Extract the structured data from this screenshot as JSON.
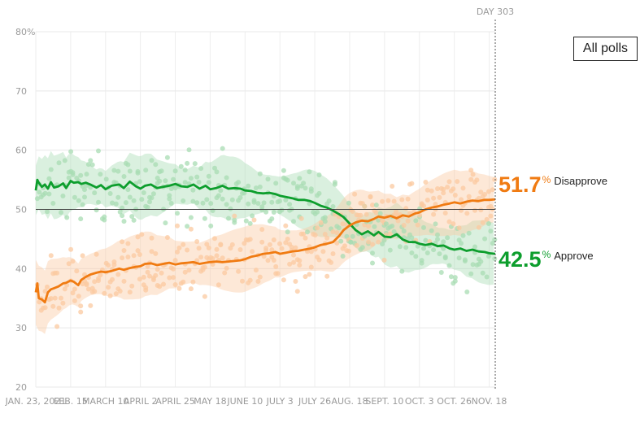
{
  "filter_button": {
    "label": "All polls"
  },
  "day_marker": {
    "label": "DAY 303"
  },
  "end_labels": {
    "disapprove": {
      "value": "51.7",
      "unit": "%",
      "name": "Disapprove"
    },
    "approve": {
      "value": "42.5",
      "unit": "%",
      "name": "Approve"
    }
  },
  "colors": {
    "approve": "#0d9e2d",
    "disapprove": "#f07b12",
    "approve_light": "#a8dcb3",
    "disapprove_light": "#fbc9a0"
  },
  "chart_data": {
    "type": "line",
    "title": "",
    "xlabel": "",
    "ylabel": "",
    "ylim": [
      20,
      80
    ],
    "xlim_days": [
      0,
      303
    ],
    "y_tick_labels": [
      "20",
      "30",
      "40",
      "50",
      "60",
      "70",
      "80%"
    ],
    "y_ticks": [
      20,
      30,
      40,
      50,
      60,
      70,
      80
    ],
    "x_tick_labels": [
      "JAN. 23, 2021",
      "FEB. 15",
      "MARCH 10",
      "APRIL 2",
      "APRIL 25",
      "MAY 18",
      "JUNE 10",
      "JULY 3",
      "JULY 26",
      "AUG. 18",
      "SEPT. 10",
      "OCT. 3",
      "OCT. 26",
      "NOV. 18"
    ],
    "x_tick_days": [
      0,
      23,
      46,
      69,
      92,
      115,
      138,
      161,
      184,
      207,
      230,
      253,
      276,
      299
    ],
    "reference_line": 50,
    "grid": true,
    "series": [
      {
        "name": "Approve",
        "color": "#0d9e2d",
        "x": [
          0,
          1,
          2,
          4,
          6,
          8,
          10,
          12,
          15,
          18,
          20,
          23,
          25,
          28,
          30,
          33,
          36,
          40,
          43,
          46,
          50,
          55,
          58,
          62,
          66,
          69,
          72,
          76,
          80,
          84,
          88,
          92,
          96,
          100,
          104,
          108,
          112,
          115,
          119,
          123,
          127,
          131,
          135,
          138,
          142,
          146,
          150,
          154,
          158,
          161,
          165,
          169,
          173,
          177,
          181,
          184,
          188,
          192,
          196,
          200,
          203,
          207,
          211,
          215,
          219,
          223,
          226,
          230,
          234,
          238,
          242,
          246,
          250,
          253,
          257,
          261,
          265,
          269,
          273,
          276,
          280,
          284,
          288,
          292,
          296,
          299,
          303
        ],
        "y": [
          53.2,
          55.0,
          54.5,
          53.8,
          54.2,
          53.5,
          54.6,
          53.7,
          53.9,
          54.4,
          53.6,
          54.8,
          54.5,
          54.6,
          54.3,
          54.5,
          54.2,
          53.7,
          54.1,
          53.4,
          54.0,
          54.2,
          53.6,
          54.7,
          53.9,
          53.5,
          54.0,
          54.2,
          53.6,
          53.8,
          54.0,
          54.3,
          53.9,
          53.8,
          54.2,
          53.5,
          54.0,
          53.4,
          53.6,
          54.0,
          53.5,
          53.6,
          53.5,
          53.2,
          53.1,
          52.8,
          52.7,
          52.8,
          52.6,
          52.3,
          52.1,
          51.9,
          51.6,
          51.6,
          51.4,
          51.1,
          50.6,
          50.3,
          49.8,
          49.2,
          48.7,
          47.6,
          46.5,
          45.8,
          46.3,
          45.6,
          46.2,
          45.4,
          45.3,
          45.8,
          44.9,
          44.5,
          44.5,
          44.2,
          44.0,
          44.2,
          43.8,
          43.9,
          43.4,
          43.2,
          43.4,
          43.0,
          43.2,
          42.9,
          42.8,
          42.6,
          42.5
        ]
      },
      {
        "name": "Disapprove",
        "color": "#f07b12",
        "x": [
          0,
          1,
          2,
          4,
          6,
          8,
          10,
          12,
          15,
          18,
          20,
          23,
          25,
          28,
          30,
          33,
          36,
          40,
          43,
          46,
          50,
          55,
          58,
          62,
          66,
          69,
          72,
          76,
          80,
          84,
          88,
          92,
          96,
          100,
          104,
          108,
          112,
          115,
          119,
          123,
          127,
          131,
          135,
          138,
          142,
          146,
          150,
          154,
          158,
          161,
          165,
          169,
          173,
          177,
          181,
          184,
          188,
          192,
          196,
          200,
          203,
          207,
          211,
          215,
          219,
          223,
          226,
          230,
          234,
          238,
          242,
          246,
          250,
          253,
          257,
          261,
          265,
          269,
          273,
          276,
          280,
          284,
          288,
          292,
          296,
          299,
          303
        ],
        "y": [
          36.0,
          37.5,
          35.0,
          34.8,
          34.3,
          36.0,
          36.5,
          36.7,
          37.0,
          37.5,
          37.6,
          38.0,
          37.8,
          37.2,
          38.1,
          38.6,
          39.0,
          39.3,
          39.5,
          39.4,
          39.6,
          40.0,
          39.8,
          40.1,
          40.3,
          40.4,
          40.8,
          40.9,
          40.6,
          40.8,
          41.0,
          40.7,
          40.9,
          41.0,
          41.1,
          40.8,
          41.0,
          41.1,
          41.2,
          41.1,
          41.2,
          41.3,
          41.4,
          41.6,
          42.0,
          42.2,
          42.5,
          42.6,
          42.8,
          42.5,
          42.7,
          42.9,
          43.0,
          43.2,
          43.4,
          43.6,
          44.0,
          44.2,
          44.5,
          45.5,
          46.5,
          47.3,
          47.8,
          48.1,
          48.0,
          48.4,
          48.8,
          48.6,
          48.9,
          48.5,
          49.0,
          48.8,
          49.3,
          49.5,
          50.0,
          50.3,
          50.5,
          50.8,
          51.0,
          51.2,
          51.0,
          51.3,
          51.5,
          51.4,
          51.6,
          51.6,
          51.7
        ]
      }
    ]
  }
}
